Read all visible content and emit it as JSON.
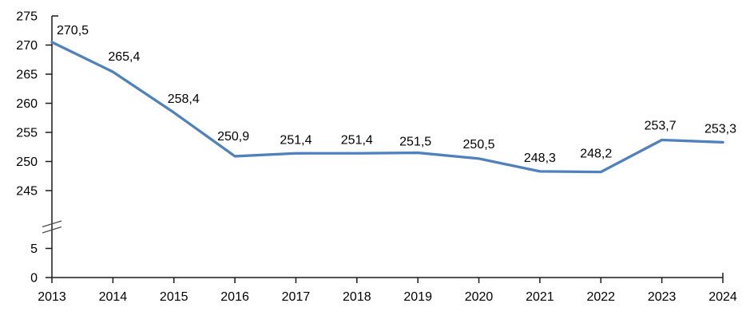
{
  "chart_data": {
    "type": "line",
    "title": "",
    "xlabel": "",
    "ylabel": "",
    "legend": "none",
    "grid": false,
    "categories": [
      "2013",
      "2014",
      "2015",
      "2016",
      "2017",
      "2018",
      "2019",
      "2020",
      "2021",
      "2022",
      "2023",
      "2024"
    ],
    "series": [
      {
        "name": "series-1",
        "values": [
          270.5,
          265.4,
          258.4,
          250.9,
          251.4,
          251.4,
          251.5,
          250.5,
          248.3,
          248.2,
          253.7,
          253.3
        ]
      }
    ],
    "data_labels": [
      "270,5",
      "265,4",
      "258,4",
      "250,9",
      "251,4",
      "251,4",
      "251,5",
      "250,5",
      "248,3",
      "248,2",
      "253,7",
      "253,3"
    ],
    "y_axis": {
      "upper_ticks": [
        275,
        270,
        265,
        260,
        255,
        250,
        245
      ],
      "lower_ticks": [
        5,
        0
      ],
      "axis_break": true,
      "upper_range": [
        245,
        275
      ],
      "lower_range": [
        0,
        5
      ]
    },
    "colors": {
      "line": "#4F81BD",
      "axis": "#1A1A1A",
      "text": "#000000",
      "break_mark": "#4D4D4D",
      "background": "#FFFFFF"
    }
  }
}
